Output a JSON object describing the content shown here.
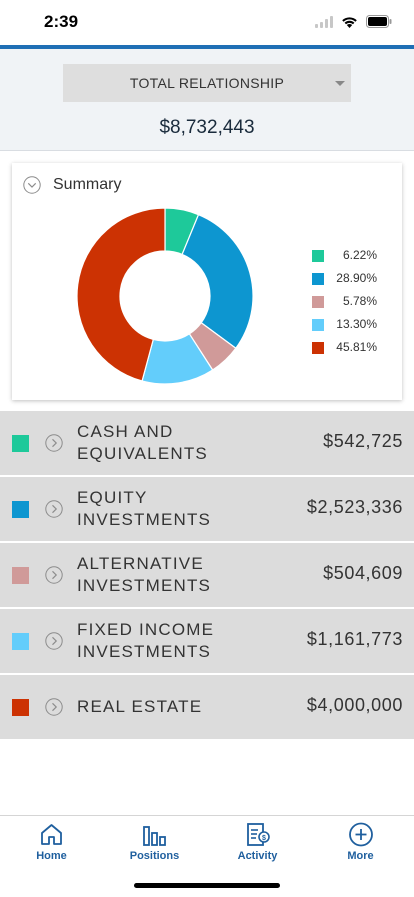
{
  "status_bar": {
    "time": "2:39",
    "icons": [
      "cellular-signal-icon",
      "wifi-icon",
      "battery-icon"
    ]
  },
  "relationship": {
    "selected": "TOTAL RELATIONSHIP",
    "total": "$8,732,443"
  },
  "summary": {
    "title": "Summary",
    "legend": [
      {
        "value": "6.22%",
        "color": "#1ec99a"
      },
      {
        "value": "28.90%",
        "color": "#0d96d0"
      },
      {
        "value": "5.78%",
        "color": "#d09a99"
      },
      {
        "value": "13.30%",
        "color": "#63cdfb"
      },
      {
        "value": "45.81%",
        "color": "#cc3203"
      }
    ]
  },
  "chart_data": {
    "type": "pie",
    "categories": [
      "Cash and Equivalents",
      "Equity Investments",
      "Alternative Investments",
      "Fixed Income Investments",
      "Real Estate"
    ],
    "values": [
      6.22,
      28.9,
      5.78,
      13.3,
      45.81
    ],
    "colors": [
      "#1ec99a",
      "#0d96d0",
      "#d09a99",
      "#63cdfb",
      "#cc3203"
    ],
    "title": "Summary",
    "donut": true,
    "legend": "right"
  },
  "assets": [
    {
      "line1": "CASH AND",
      "line2": "EQUIVALENTS",
      "value": "$542,725",
      "color": "#1ec99a"
    },
    {
      "line1": "EQUITY",
      "line2": "INVESTMENTS",
      "value": "$2,523,336",
      "color": "#0d96d0"
    },
    {
      "line1": "ALTERNATIVE",
      "line2": "INVESTMENTS",
      "value": "$504,609",
      "color": "#d09a99"
    },
    {
      "line1": "FIXED INCOME",
      "line2": "INVESTMENTS",
      "value": "$1,161,773",
      "color": "#63cdfb"
    },
    {
      "line1": "REAL ESTATE",
      "line2": "",
      "value": "$4,000,000",
      "color": "#cc3203"
    }
  ],
  "tabs": [
    {
      "label": "Home",
      "icon": "home-icon"
    },
    {
      "label": "Positions",
      "icon": "positions-chart-icon"
    },
    {
      "label": "Activity",
      "icon": "activity-icon"
    },
    {
      "label": "More",
      "icon": "plus-circle-icon"
    }
  ]
}
